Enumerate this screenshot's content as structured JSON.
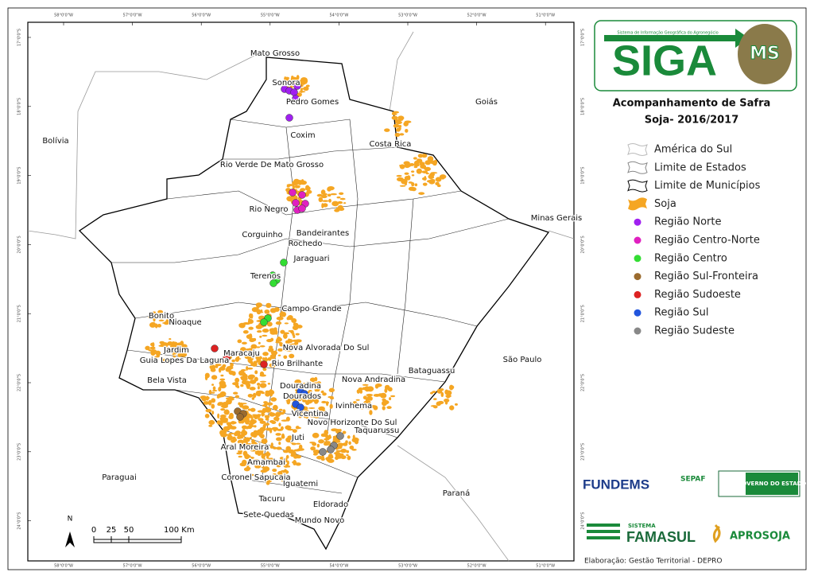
{
  "title": "Acompanhamento de Safra",
  "subtitle": "Soja- 2016/2017",
  "logo": {
    "name": "SIGA",
    "badge": "MS",
    "tagline": "Sistema de Informação Geográfica do Agronegócio"
  },
  "legend": [
    {
      "label": "América do Sul",
      "color": "#ffffff"
    },
    {
      "label": "Limite de Estados",
      "color": "#ffffff"
    },
    {
      "label": "Limite de Municípios",
      "color": "#ffffff"
    },
    {
      "label": "Soja",
      "color": "#f5a623"
    },
    {
      "label": "Região Norte",
      "color": "#a020f0"
    },
    {
      "label": "Região Centro-Norte",
      "color": "#e020c0"
    },
    {
      "label": "Região Centro",
      "color": "#33dd33"
    },
    {
      "label": "Região Sul-Fronteira",
      "color": "#9b6b2e"
    },
    {
      "label": "Região Sudoeste",
      "color": "#dd2222"
    },
    {
      "label": "Região Sul",
      "color": "#2255dd"
    },
    {
      "label": "Região Sudeste",
      "color": "#888888"
    }
  ],
  "grid": {
    "longitudes": [
      "58°0'0\"W",
      "57°0'0\"W",
      "56°0'0\"W",
      "55°0'0\"W",
      "54°0'0\"W",
      "53°0'0\"W",
      "52°0'0\"W",
      "51°0'0\"W"
    ],
    "latitudes": [
      "17°0'0\"S",
      "18°0'0\"S",
      "19°0'0\"S",
      "20°0'0\"S",
      "21°0'0\"S",
      "22°0'0\"S",
      "23°0'0\"S",
      "24°0'0\"S"
    ]
  },
  "places": [
    "Mato Grosso",
    "Sonora",
    "Pedro Gomes",
    "Coxim",
    "Goiás",
    "Bolívia",
    "Costa Rica",
    "Rio Verde De Mato Grosso",
    "Rio Negro",
    "Corguinho",
    "Bandeirantes",
    "Rochedo",
    "Jaraguari",
    "Terenos",
    "Campo Grande",
    "Bonito",
    "Nioaque",
    "Maracaju",
    "Jardim",
    "Guia Lopes Da Laguna",
    "Nova Alvorada Do Sul",
    "Rio Brilhante",
    "Bela Vista",
    "Douradina",
    "Dourados",
    "Nova Andradina",
    "Bataguassu",
    "São Paulo",
    "Ivinhema",
    "Vicentina",
    "Novo Horizonte Do Sul",
    "Taquarussu",
    "Juti",
    "Aral Moreira",
    "Amambai",
    "Paraguai",
    "Coronel Sapucaia",
    "Iguatemi",
    "Tacuru",
    "Eldorado",
    "Sete Quedas",
    "Mundo Novo",
    "Paraná",
    "Minas Gerais"
  ],
  "scale": {
    "north": "N",
    "ticks": [
      0,
      25,
      50
    ],
    "end": "100 Km"
  },
  "partners": {
    "fundems": "FUNDEMS",
    "sepaf": "SEPAF",
    "governo": "GOVERNO DO ESTADO",
    "sistema": "SISTEMA",
    "famasul": "FAMASUL",
    "aprosoja": "APROSOJA"
  },
  "credit": "Elaboração: Gestão Territorial - DEPRO"
}
